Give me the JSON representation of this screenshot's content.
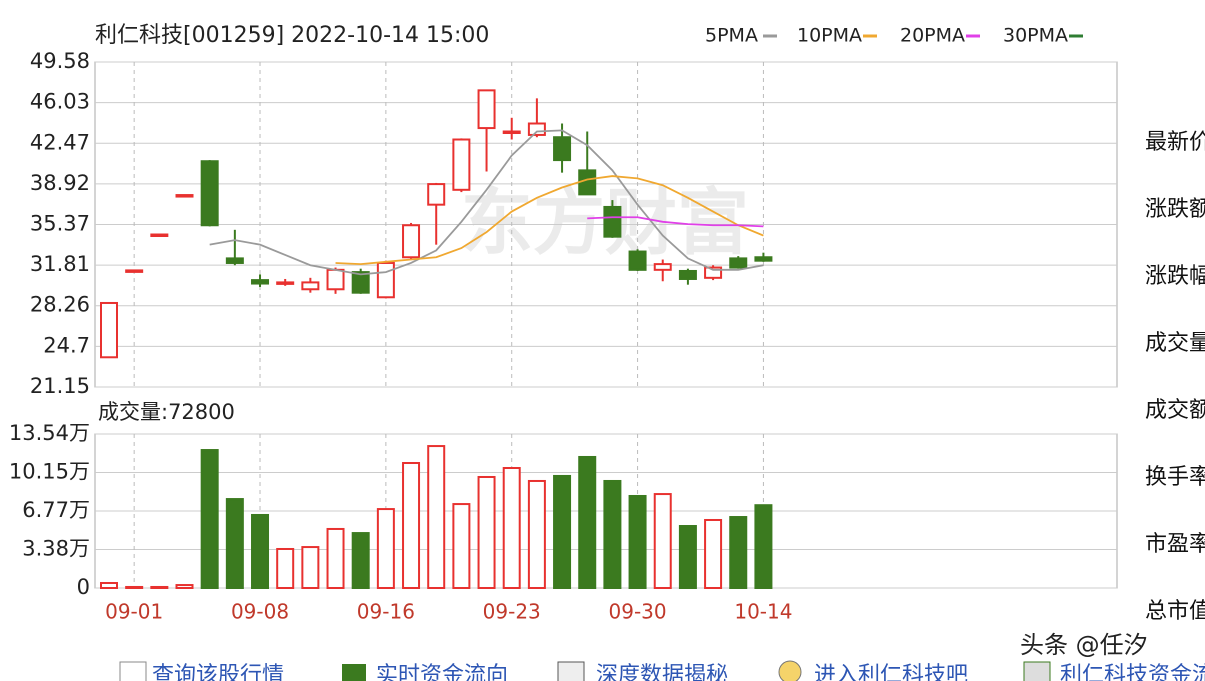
{
  "chart_data": [
    {
      "type": "candlestick",
      "title": "利仁科技[001259] 2022-10-14 15:00",
      "open": [
        23.75,
        31.35,
        34.49,
        37.94,
        40.9,
        32.4,
        30.5,
        30.2,
        29.7,
        29.7,
        31.2,
        29.0,
        32.5,
        37.1,
        38.4,
        43.8,
        43.4,
        43.2,
        43.0,
        40.1,
        36.9,
        33.0,
        31.4,
        31.3,
        30.7,
        32.4,
        32.5
      ],
      "high": [
        28.5,
        31.35,
        34.49,
        37.94,
        41.0,
        34.9,
        31.0,
        30.6,
        30.7,
        31.6,
        31.5,
        32.2,
        35.5,
        39.0,
        42.9,
        47.1,
        44.7,
        46.4,
        44.2,
        43.5,
        37.5,
        33.2,
        32.3,
        31.5,
        31.8,
        32.6,
        32.9
      ],
      "low": [
        23.75,
        31.35,
        34.49,
        37.94,
        35.2,
        31.8,
        29.9,
        30.0,
        29.4,
        29.3,
        29.3,
        28.9,
        32.3,
        33.6,
        38.2,
        40.0,
        42.8,
        43.0,
        39.9,
        38.0,
        34.2,
        31.3,
        30.4,
        30.1,
        30.5,
        31.5,
        32.1
      ],
      "close": [
        28.5,
        31.35,
        34.49,
        37.94,
        35.3,
        32.0,
        30.2,
        30.3,
        30.3,
        31.4,
        29.4,
        32.0,
        35.3,
        38.9,
        42.8,
        47.1,
        43.5,
        44.2,
        41.0,
        38.0,
        34.3,
        31.4,
        31.9,
        30.6,
        31.6,
        31.6,
        32.2
      ],
      "up_color": "#e8312f",
      "down_color": "#3b7a1f",
      "ylim": [
        21.15,
        49.58
      ],
      "yticks": [
        21.15,
        24.7,
        28.26,
        31.81,
        35.37,
        38.92,
        42.47,
        46.03,
        49.58
      ],
      "grid": true,
      "series": [
        {
          "name": "5PMA",
          "color": "#9a9a9a",
          "values": [
            null,
            null,
            null,
            null,
            33.6,
            34.0,
            33.6,
            32.7,
            31.8,
            31.4,
            31.0,
            31.2,
            32.0,
            33.1,
            35.6,
            38.4,
            41.4,
            43.5,
            43.6,
            42.3,
            40.1,
            37.1,
            34.4,
            32.4,
            31.4,
            31.4,
            31.8
          ]
        },
        {
          "name": "10PMA",
          "color": "#f0a830",
          "values": [
            null,
            null,
            null,
            null,
            null,
            null,
            null,
            null,
            null,
            32.0,
            31.9,
            32.1,
            32.3,
            32.5,
            33.3,
            34.7,
            36.5,
            37.7,
            38.6,
            39.3,
            39.6,
            39.4,
            38.8,
            37.7,
            36.5,
            35.3,
            34.4
          ]
        },
        {
          "name": "20PMA",
          "color": "#e040e8",
          "values": [
            null,
            null,
            null,
            null,
            null,
            null,
            null,
            null,
            null,
            null,
            null,
            null,
            null,
            null,
            null,
            null,
            null,
            null,
            null,
            35.9,
            36.0,
            36.0,
            35.6,
            35.4,
            35.3,
            35.3,
            35.2
          ]
        },
        {
          "name": "30PMA",
          "color": "#2e7d32",
          "values": [
            null,
            null,
            null,
            null,
            null,
            null,
            null,
            null,
            null,
            null,
            null,
            null,
            null,
            null,
            null,
            null,
            null,
            null,
            null,
            null,
            null,
            null,
            null,
            null,
            null,
            null,
            null
          ]
        }
      ],
      "watermark": "东方财富"
    },
    {
      "type": "bar",
      "title": "成交量:72800",
      "categories": [
        null,
        "09-01",
        null,
        null,
        null,
        null,
        "09-08",
        null,
        null,
        null,
        null,
        "09-16",
        null,
        null,
        null,
        null,
        "09-23",
        null,
        null,
        null,
        null,
        "09-30",
        null,
        null,
        null,
        null,
        "10-14"
      ],
      "values": [
        0.44,
        0.09,
        0.09,
        0.26,
        12.13,
        7.82,
        6.42,
        3.43,
        3.6,
        5.19,
        4.83,
        6.94,
        10.99,
        12.48,
        7.38,
        9.76,
        10.55,
        9.41,
        9.85,
        11.52,
        9.41,
        8.09,
        8.26,
        5.45,
        5.98,
        6.24,
        7.28
      ],
      "ylim": [
        0,
        13.54
      ],
      "yticks": [
        0,
        {
          "value": 3.38,
          "label": "3.38万"
        },
        {
          "value": 6.77,
          "label": "6.77万"
        },
        {
          "value": 10.15,
          "label": "10.15万"
        },
        {
          "value": 13.54,
          "label": "13.54万"
        }
      ],
      "grid": true
    }
  ],
  "quote_panel": {
    "labels": [
      "最新价",
      "涨跌额",
      "涨跌幅",
      "成交量",
      "成交额",
      "换手率",
      "市盈率",
      "总市值"
    ]
  },
  "links": [
    "查询该股行情",
    "实时资金流向",
    "深度数据揭秘",
    "进入利仁科技吧",
    "利仁科技资金流向"
  ],
  "credit": "头条 @任汐"
}
